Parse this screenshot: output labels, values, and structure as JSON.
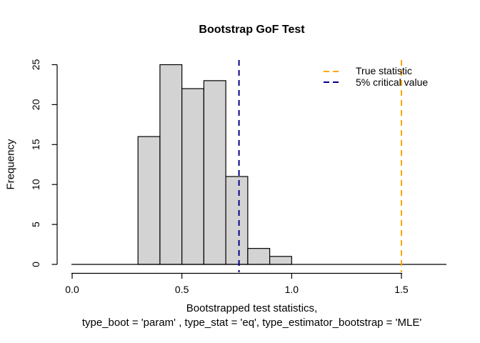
{
  "chart_data": {
    "type": "bar",
    "subtype": "histogram",
    "title": "Bootstrap GoF Test",
    "ylabel": "Frequency",
    "xlabel_line1": "Bootstrapped test statistics,",
    "xlabel_line2": "type_boot = 'param' , type_stat = 'eq', type_estimator_bootstrap = 'MLE'",
    "bin_edges": [
      0.3,
      0.4,
      0.5,
      0.6,
      0.7,
      0.8,
      0.9,
      1.0
    ],
    "frequencies": [
      16,
      25,
      22,
      23,
      11,
      2,
      1
    ],
    "bar_fill": "#D3D3D3",
    "bar_stroke": "#000000",
    "x_tick_labels": [
      "0.0",
      "0.5",
      "1.0",
      "1.5"
    ],
    "x_tick_values": [
      0,
      0.5,
      1,
      1.5
    ],
    "y_tick_labels": [
      "0",
      "5",
      "10",
      "15",
      "20",
      "25"
    ],
    "y_tick_values": [
      0,
      5,
      10,
      15,
      20,
      25
    ],
    "xlim": [
      -0.07,
      1.71
    ],
    "ylim": [
      0,
      26
    ],
    "grid": false,
    "vlines": [
      {
        "value": 1.5,
        "color": "#FFA500",
        "style": "dashed",
        "label": "True statistic"
      },
      {
        "value": 0.76,
        "color": "#00008B",
        "style": "dashed",
        "label": "5% critical value"
      }
    ],
    "legend": {
      "position": "topright",
      "box": false,
      "items": [
        {
          "label": "True statistic",
          "color": "#FFA500",
          "line_style": "dashed"
        },
        {
          "label": "5% critical value",
          "color": "#00008B",
          "line_style": "dashed"
        }
      ]
    }
  }
}
